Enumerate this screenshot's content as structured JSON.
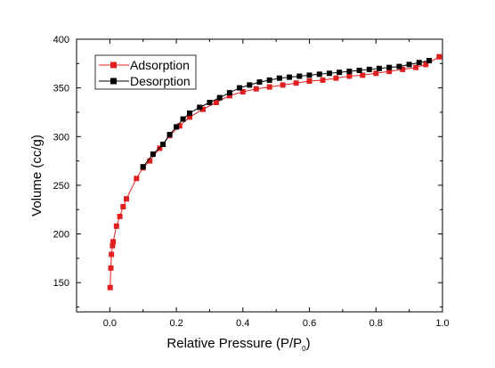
{
  "chart_data": {
    "type": "line",
    "title": "",
    "xlabel": "Relative Pressure (P/P",
    "xlabel_subscript": "0",
    "xlabel_suffix": ")",
    "ylabel": "Volume (cc/g)",
    "xlim": [
      -0.1,
      1.0
    ],
    "ylim": [
      120,
      400
    ],
    "xticks": [
      0.0,
      0.2,
      0.4,
      0.6,
      0.8,
      1.0
    ],
    "xtick_labels": [
      "0.0",
      "0.2",
      "0.4",
      "0.6",
      "0.8",
      "1.0"
    ],
    "yticks": [
      150,
      200,
      250,
      300,
      350,
      400
    ],
    "ytick_labels": [
      "150",
      "200",
      "250",
      "300",
      "350",
      "400"
    ],
    "grid": false,
    "legend_position": "top-left",
    "series": [
      {
        "name": "Adsorption",
        "color": "#e02020",
        "marker": "square",
        "x": [
          0.001,
          0.003,
          0.005,
          0.008,
          0.01,
          0.02,
          0.03,
          0.04,
          0.05,
          0.08,
          0.1,
          0.12,
          0.15,
          0.18,
          0.21,
          0.24,
          0.28,
          0.32,
          0.36,
          0.4,
          0.44,
          0.48,
          0.52,
          0.56,
          0.6,
          0.64,
          0.68,
          0.72,
          0.76,
          0.8,
          0.84,
          0.88,
          0.92,
          0.95,
          0.99
        ],
        "y": [
          145,
          165,
          179,
          188,
          192,
          208,
          218,
          228,
          236,
          257,
          268,
          275,
          288,
          301,
          311,
          320,
          328,
          335,
          342,
          346,
          349,
          351,
          353,
          355,
          357,
          358,
          360,
          362,
          363,
          365,
          367,
          369,
          371,
          374,
          382
        ]
      },
      {
        "name": "Desorption",
        "color": "#000000",
        "marker": "square",
        "x": [
          0.96,
          0.93,
          0.9,
          0.87,
          0.84,
          0.81,
          0.78,
          0.75,
          0.72,
          0.69,
          0.66,
          0.63,
          0.6,
          0.57,
          0.54,
          0.51,
          0.48,
          0.45,
          0.42,
          0.39,
          0.36,
          0.33,
          0.3,
          0.27,
          0.24,
          0.22,
          0.2,
          0.18,
          0.16,
          0.13,
          0.1
        ],
        "y": [
          378,
          376,
          374,
          372,
          371,
          370,
          369,
          368,
          367,
          366,
          365,
          364,
          363,
          362,
          361,
          360,
          358,
          356,
          353,
          350,
          345,
          340,
          335,
          330,
          324,
          318,
          310,
          302,
          292,
          282,
          269
        ]
      }
    ]
  }
}
